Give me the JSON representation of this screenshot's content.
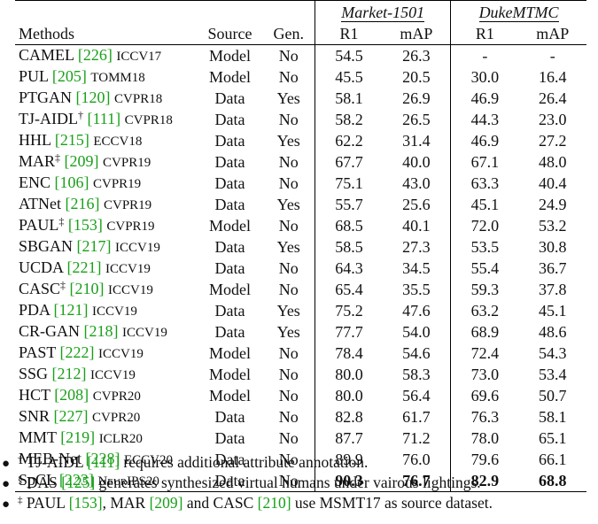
{
  "header": {
    "datasets": [
      "Market-1501",
      "DukeMTMC"
    ],
    "columns": [
      "Methods",
      "Source",
      "Gen.",
      "R1",
      "mAP",
      "R1",
      "mAP"
    ]
  },
  "rows": [
    {
      "name": "CAMEL",
      "mark": "",
      "cite": "[226]",
      "venue": "ICCV17",
      "source": "Model",
      "gen": "No",
      "m_r1": "54.5",
      "m_map": "26.3",
      "d_r1": "-",
      "d_map": "-"
    },
    {
      "name": "PUL",
      "mark": "",
      "cite": "[205]",
      "venue": "TOMM18",
      "source": "Model",
      "gen": "No",
      "m_r1": "45.5",
      "m_map": "20.5",
      "d_r1": "30.0",
      "d_map": "16.4"
    },
    {
      "name": "PTGAN",
      "mark": "",
      "cite": "[120]",
      "venue": "CVPR18",
      "source": "Data",
      "gen": "Yes",
      "m_r1": "58.1",
      "m_map": "26.9",
      "d_r1": "46.9",
      "d_map": "26.4"
    },
    {
      "name": "TJ-AIDL",
      "mark": "†",
      "cite": "[111]",
      "venue": "CVPR18",
      "source": "Data",
      "gen": "No",
      "m_r1": "58.2",
      "m_map": "26.5",
      "d_r1": "44.3",
      "d_map": "23.0"
    },
    {
      "name": "HHL",
      "mark": "",
      "cite": "[215]",
      "venue": "ECCV18",
      "source": "Data",
      "gen": "Yes",
      "m_r1": "62.2",
      "m_map": "31.4",
      "d_r1": "46.9",
      "d_map": "27.2"
    },
    {
      "name": "MAR",
      "mark": "‡",
      "cite": "[209]",
      "venue": "CVPR19",
      "source": "Data",
      "gen": "No",
      "m_r1": "67.7",
      "m_map": "40.0",
      "d_r1": "67.1",
      "d_map": "48.0"
    },
    {
      "name": "ENC",
      "mark": "",
      "cite": "[106]",
      "venue": "CVPR19",
      "source": "Data",
      "gen": "No",
      "m_r1": "75.1",
      "m_map": "43.0",
      "d_r1": "63.3",
      "d_map": "40.4"
    },
    {
      "name": "ATNet",
      "mark": "",
      "cite": "[216]",
      "venue": "CVPR19",
      "source": "Data",
      "gen": "Yes",
      "m_r1": "55.7",
      "m_map": "25.6",
      "d_r1": "45.1",
      "d_map": "24.9"
    },
    {
      "name": "PAUL",
      "mark": "‡",
      "cite": "[153]",
      "venue": "CVPR19",
      "source": "Model",
      "gen": "No",
      "m_r1": "68.5",
      "m_map": "40.1",
      "d_r1": "72.0",
      "d_map": "53.2"
    },
    {
      "name": "SBGAN",
      "mark": "",
      "cite": "[217]",
      "venue": "ICCV19",
      "source": "Data",
      "gen": "Yes",
      "m_r1": "58.5",
      "m_map": "27.3",
      "d_r1": "53.5",
      "d_map": "30.8"
    },
    {
      "name": "UCDA",
      "mark": "",
      "cite": "[221]",
      "venue": "ICCV19",
      "source": "Data",
      "gen": "No",
      "m_r1": "64.3",
      "m_map": "34.5",
      "d_r1": "55.4",
      "d_map": "36.7"
    },
    {
      "name": "CASC",
      "mark": "‡",
      "cite": "[210]",
      "venue": "ICCV19",
      "source": "Model",
      "gen": "No",
      "m_r1": "65.4",
      "m_map": "35.5",
      "d_r1": "59.3",
      "d_map": "37.8"
    },
    {
      "name": "PDA",
      "mark": "",
      "cite": "[121]",
      "venue": "ICCV19",
      "source": "Data",
      "gen": "Yes",
      "m_r1": "75.2",
      "m_map": "47.6",
      "d_r1": "63.2",
      "d_map": "45.1"
    },
    {
      "name": "CR-GAN",
      "mark": "",
      "cite": "[218]",
      "venue": "ICCV19",
      "source": "Data",
      "gen": "Yes",
      "m_r1": "77.7",
      "m_map": "54.0",
      "d_r1": "68.9",
      "d_map": "48.6"
    },
    {
      "name": "PAST",
      "mark": "",
      "cite": "[222]",
      "venue": "ICCV19",
      "source": "Model",
      "gen": "No",
      "m_r1": "78.4",
      "m_map": "54.6",
      "d_r1": "72.4",
      "d_map": "54.3"
    },
    {
      "name": "SSG",
      "mark": "",
      "cite": "[212]",
      "venue": "ICCV19",
      "source": "Model",
      "gen": "No",
      "m_r1": "80.0",
      "m_map": "58.3",
      "d_r1": "73.0",
      "d_map": "53.4"
    },
    {
      "name": "HCT",
      "mark": "",
      "cite": "[208]",
      "venue": "CVPR20",
      "source": "Model",
      "gen": "No",
      "m_r1": "80.0",
      "m_map": "56.4",
      "d_r1": "69.6",
      "d_map": "50.7"
    },
    {
      "name": "SNR",
      "mark": "",
      "cite": "[227]",
      "venue": "CVPR20",
      "source": "Data",
      "gen": "No",
      "m_r1": "82.8",
      "m_map": "61.7",
      "d_r1": "76.3",
      "d_map": "58.1"
    },
    {
      "name": "MMT",
      "mark": "",
      "cite": "[219]",
      "venue": "ICLR20",
      "source": "Data",
      "gen": "No",
      "m_r1": "87.7",
      "m_map": "71.2",
      "d_r1": "78.0",
      "d_map": "65.1"
    },
    {
      "name": "MEB-Net",
      "mark": "",
      "cite": "[228]",
      "venue": "ECCV20",
      "source": "Data",
      "gen": "No",
      "m_r1": "89.9",
      "m_map": "76.0",
      "d_r1": "79.6",
      "d_map": "66.1"
    },
    {
      "name": "SpCL",
      "mark": "",
      "cite": "[223]",
      "venue": "NeurIPS20",
      "source": "Data",
      "gen": "No",
      "m_r1": "90.3",
      "m_map": "76.7",
      "d_r1": "82.9",
      "d_map": "68.8",
      "bold": true
    }
  ],
  "notes": [
    {
      "bullet": "●",
      "mark": "†",
      "pre": "TJ-AIDL",
      "cite": "[111]",
      "post": "requires additional attribute annotation."
    },
    {
      "bullet": "●",
      "mark": "§",
      "pre": "DAS",
      "cite": "[125]",
      "post": "generates synthesized virtual humans under vairous lightings."
    },
    {
      "bullet": "●",
      "mark": "‡",
      "pre": "PAUL",
      "cite": "[153]",
      "mid1": ", MAR",
      "cite2": "[209]",
      "mid2": "and CASC",
      "cite3": "[210]",
      "post": "use MSMT17 as source dataset."
    }
  ],
  "colors": {
    "citation": "#1aa01a",
    "text": "#111111"
  }
}
